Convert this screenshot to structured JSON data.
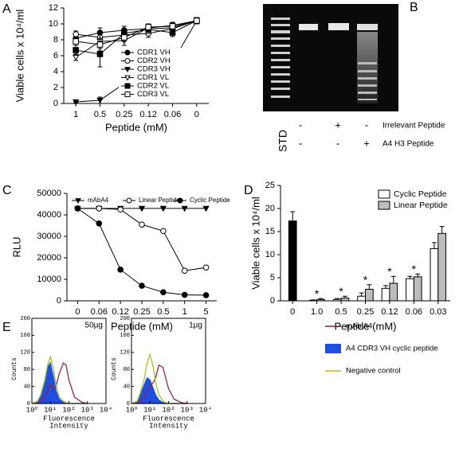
{
  "chart_data": [
    {
      "type": "line",
      "label": "A",
      "ylabel": "Viable cells x 10⁴/ml",
      "xlabel": "Peptide (mM)",
      "categories": [
        "1",
        "0.5",
        "0.25",
        "0.12",
        "0.06",
        "0"
      ],
      "ylim": [
        0,
        12
      ],
      "yticks": [
        0,
        2,
        4,
        6,
        8,
        10,
        12
      ],
      "legend": "lower right",
      "series": [
        {
          "name": "CDR1 VH",
          "marker": "circle",
          "fill": "#000000",
          "color": "#000000",
          "values": [
            8.2,
            8.9,
            9.2,
            9.4,
            9.5,
            10.4
          ],
          "errors": [
            0.5,
            0.6,
            0.5,
            0.4,
            0.4,
            0.4
          ]
        },
        {
          "name": "CDR2 VH",
          "marker": "circle",
          "fill": "#ffffff",
          "color": "#000000",
          "values": [
            8.7,
            8.3,
            8.6,
            8.8,
            9.4,
            10.4
          ],
          "errors": [
            0.4,
            0.8,
            0.6,
            0.5,
            0.4,
            0.4
          ]
        },
        {
          "name": "CDR3 VH",
          "marker": "triangle-down",
          "fill": "#000000",
          "color": "#000000",
          "values": [
            0.2,
            0.4,
            2.5,
            3.8,
            5.2,
            10.4
          ],
          "errors": [
            0.1,
            0.4,
            1.0,
            1.3,
            0.8,
            0.4
          ]
        },
        {
          "name": "CDR1 VL",
          "marker": "triangle-down",
          "fill": "#ffffff",
          "color": "#000000",
          "values": [
            5.8,
            7.8,
            7.9,
            9.5,
            9.8,
            10.4
          ],
          "errors": [
            0.4,
            0.9,
            0.6,
            0.5,
            0.4,
            0.4
          ]
        },
        {
          "name": "CDR2 VL",
          "marker": "square",
          "fill": "#000000",
          "color": "#000000",
          "values": [
            6.7,
            6.2,
            8.8,
            9.3,
            8.9,
            10.4
          ],
          "errors": [
            0.6,
            1.6,
            0.5,
            0.5,
            0.5,
            0.4
          ]
        },
        {
          "name": "CDR3 VL",
          "marker": "square",
          "fill": "#ffffff",
          "color": "#000000",
          "values": [
            7.8,
            7.4,
            8.3,
            9.6,
            9.7,
            10.4
          ],
          "errors": [
            0.3,
            0.8,
            0.5,
            0.4,
            0.4,
            0.4
          ]
        }
      ]
    },
    {
      "type": "gel",
      "label": "B",
      "lane_label": "STD",
      "rows": [
        {
          "name": "Irrelevant Peptide",
          "lanes": [
            "-",
            "+",
            "-"
          ]
        },
        {
          "name": "A4 H3 Peptide",
          "lanes": [
            "-",
            "-",
            "+"
          ]
        }
      ]
    },
    {
      "type": "line",
      "label": "C",
      "ylabel": "RLU",
      "xlabel": "Peptide (mM)",
      "categories": [
        "0",
        "0.06",
        "0.12",
        "0.25",
        "0.5",
        "1",
        "5"
      ],
      "ylim": [
        0,
        50000
      ],
      "yticks": [
        0,
        10000,
        20000,
        30000,
        40000,
        50000
      ],
      "legend": "top",
      "series": [
        {
          "name": "mAbA4",
          "marker": "triangle-down",
          "fill": "#000000",
          "color": "#000000",
          "values": [
            43000,
            43000,
            43000,
            43000,
            43000,
            43000,
            43000
          ]
        },
        {
          "name": "Linear Peptide",
          "marker": "circle",
          "fill": "#ffffff",
          "color": "#000000",
          "values": [
            43000,
            43000,
            42500,
            35500,
            32500,
            14000,
            15500
          ]
        },
        {
          "name": "Cyclic Peptide",
          "marker": "circle",
          "fill": "#000000",
          "color": "#000000",
          "values": [
            43000,
            36000,
            14500,
            7000,
            4000,
            2800,
            2600
          ]
        }
      ]
    },
    {
      "type": "bar",
      "label": "D",
      "ylabel": "Viable cells x 10⁴/ml",
      "xlabel": "Peptide (mM)",
      "categories": [
        "0",
        "1.0",
        "0.5",
        "0.25",
        "0.12",
        "0.06",
        "0.03"
      ],
      "ylim": [
        0,
        25
      ],
      "yticks": [
        0,
        5,
        10,
        15,
        20,
        25
      ],
      "legend": "upper right",
      "markers": [
        null,
        "*",
        "*",
        "*",
        "*",
        "*",
        null
      ],
      "series": [
        {
          "name": "Cyclic Peptide",
          "color": "#ffffff",
          "colors": [
            "#000000",
            "#ffffff",
            "#ffffff",
            "#ffffff",
            "#ffffff",
            "#ffffff",
            "#ffffff"
          ],
          "values": [
            17.3,
            0.1,
            0.3,
            1.0,
            2.7,
            4.8,
            11.3
          ],
          "errors": [
            2.0,
            0.1,
            0.2,
            0.7,
            0.6,
            0.5,
            1.3
          ]
        },
        {
          "name": "Linear Peptide",
          "color": "#bdbdbd",
          "values": [
            null,
            0.3,
            0.6,
            2.5,
            3.8,
            5.2,
            14.6
          ],
          "errors": [
            null,
            0.2,
            0.4,
            1.0,
            1.5,
            0.6,
            1.5
          ]
        }
      ]
    },
    {
      "type": "flow",
      "label": "E",
      "ylabel": "Counts",
      "xlabel": [
        "Fluorescence",
        "Intensity"
      ],
      "xlog": true,
      "x": [
        1,
        2,
        3,
        5,
        7,
        10,
        15,
        20,
        30,
        50,
        70,
        100,
        200,
        500,
        1000
      ],
      "xlim": [
        1,
        10000
      ],
      "xticks": [
        {
          "value": 1,
          "label": "10⁰"
        },
        {
          "value": 10,
          "label": "10¹"
        },
        {
          "value": 100,
          "label": "10²"
        },
        {
          "value": 1000,
          "label": "10³"
        },
        {
          "value": 10000,
          "label": "10⁴"
        }
      ],
      "ylim": [
        0,
        200
      ],
      "yticks": [
        0,
        40,
        80,
        120,
        160,
        200
      ],
      "series": [
        {
          "name": "mAb A4",
          "color": "#8e2354",
          "style": "line"
        },
        {
          "name": "A4 CDR3 VH cyclic peptide",
          "color": "#1f4fe0",
          "style": "area"
        },
        {
          "name": "Negative control",
          "color": "#a8c520",
          "style": "line"
        }
      ],
      "panels": [
        {
          "annotation": "50µg",
          "values": [
            [
              0,
              2,
              5,
              15,
              30,
              45,
              35,
              40,
              70,
              95,
              90,
              55,
              15,
              3,
              0
            ],
            [
              0,
              5,
              20,
              55,
              85,
              95,
              60,
              30,
              10,
              3,
              1,
              0,
              0,
              0,
              0
            ],
            [
              0,
              5,
              20,
              55,
              90,
              110,
              80,
              45,
              15,
              5,
              2,
              0,
              0,
              0,
              0
            ]
          ]
        },
        {
          "annotation": "1µg",
          "values": [
            [
              0,
              2,
              5,
              15,
              30,
              40,
              50,
              60,
              90,
              85,
              60,
              35,
              10,
              2,
              0
            ],
            [
              0,
              5,
              20,
              45,
              60,
              55,
              35,
              20,
              8,
              2,
              1,
              0,
              0,
              0,
              0
            ],
            [
              0,
              5,
              25,
              60,
              95,
              115,
              85,
              50,
              20,
              6,
              2,
              0,
              0,
              0,
              0
            ]
          ]
        }
      ]
    }
  ]
}
